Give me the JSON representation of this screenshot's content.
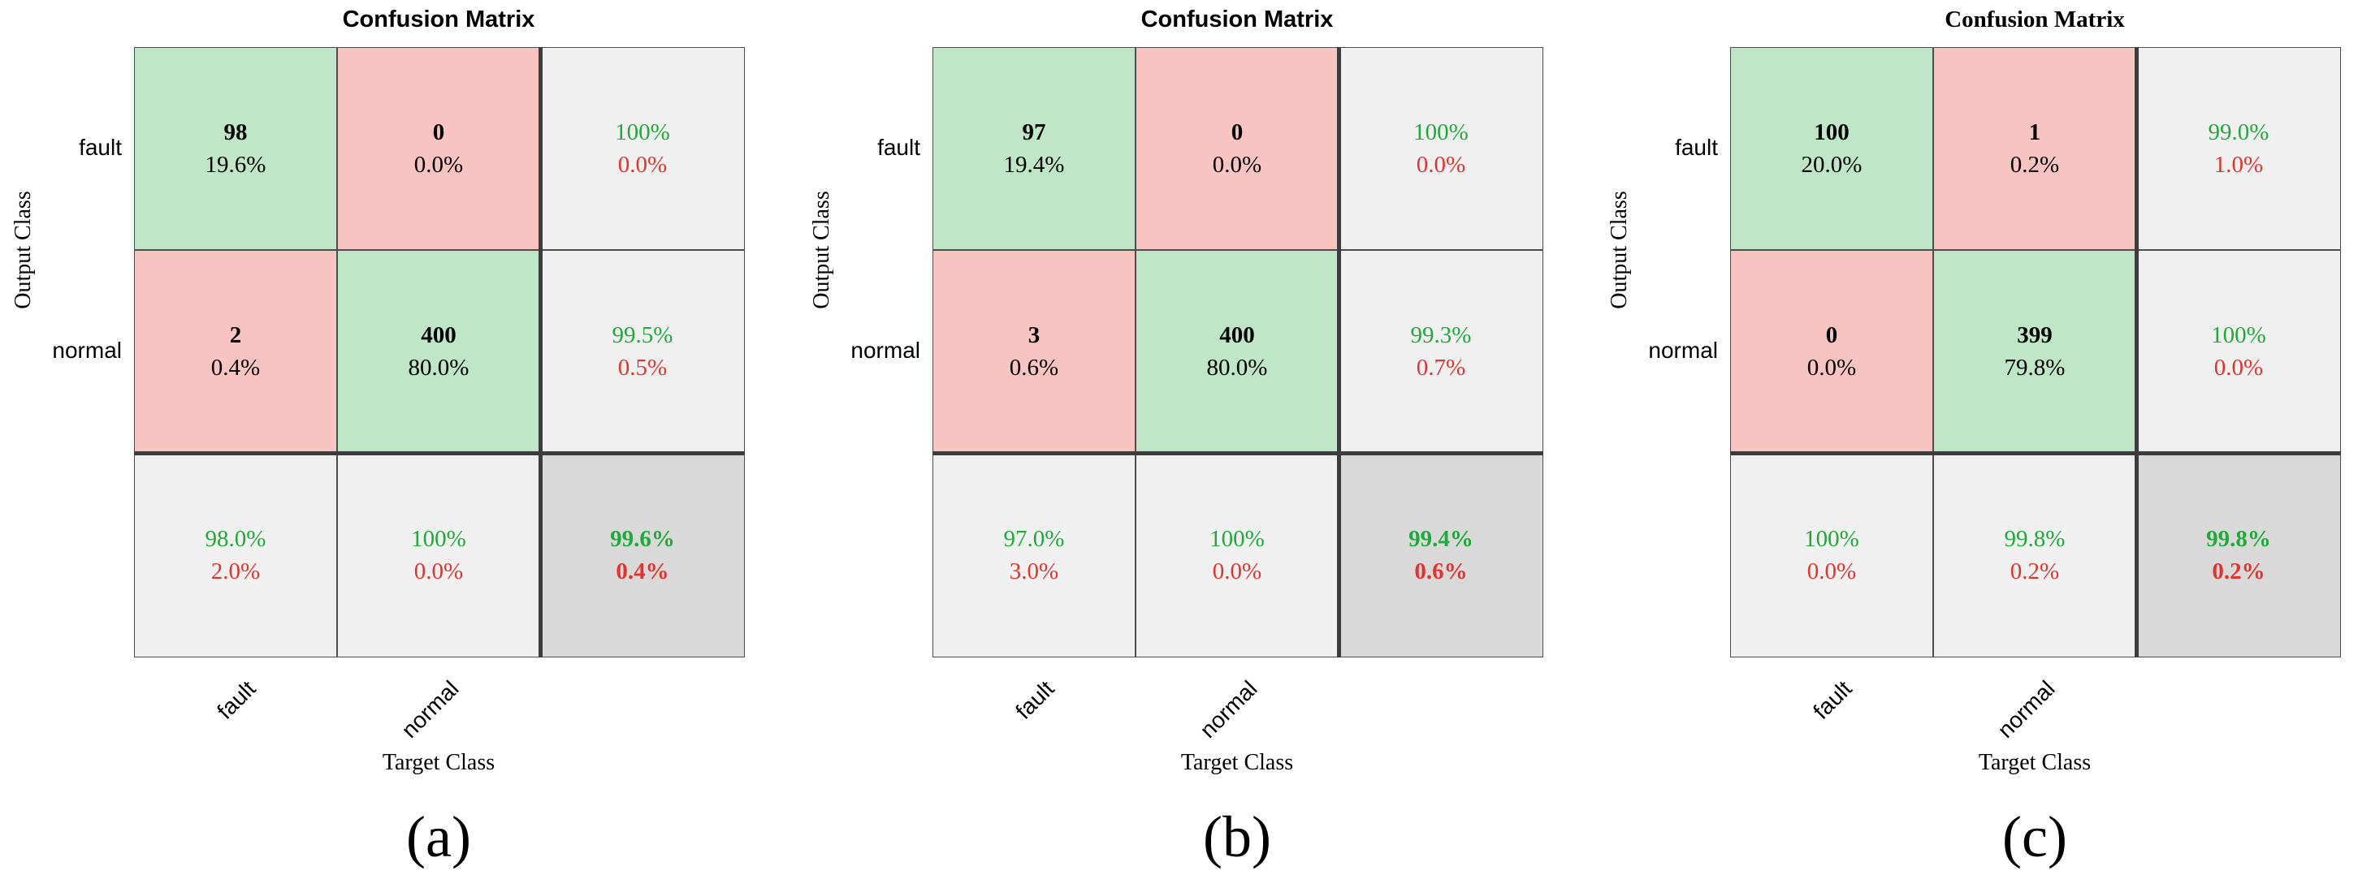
{
  "chart_data": [
    {
      "type": "heatmap",
      "title": "Confusion Matrix",
      "xlabel": "Target Class",
      "ylabel": "Output Class",
      "categories": [
        "fault",
        "normal"
      ],
      "cells": [
        [
          {
            "count": "98",
            "pct": "19.6%"
          },
          {
            "count": "0",
            "pct": "0.0%"
          }
        ],
        [
          {
            "count": "2",
            "pct": "0.4%"
          },
          {
            "count": "400",
            "pct": "80.0%"
          }
        ]
      ],
      "row_summary": [
        {
          "correct": "100%",
          "wrong": "0.0%"
        },
        {
          "correct": "99.5%",
          "wrong": "0.5%"
        }
      ],
      "col_summary": [
        {
          "correct": "98.0%",
          "wrong": "2.0%"
        },
        {
          "correct": "100%",
          "wrong": "0.0%"
        }
      ],
      "overall": {
        "correct": "99.6%",
        "wrong": "0.4%"
      },
      "panel_label": "(a)"
    },
    {
      "type": "heatmap",
      "title": "Confusion Matrix",
      "xlabel": "Target Class",
      "ylabel": "Output Class",
      "categories": [
        "fault",
        "normal"
      ],
      "cells": [
        [
          {
            "count": "97",
            "pct": "19.4%"
          },
          {
            "count": "0",
            "pct": "0.0%"
          }
        ],
        [
          {
            "count": "3",
            "pct": "0.6%"
          },
          {
            "count": "400",
            "pct": "80.0%"
          }
        ]
      ],
      "row_summary": [
        {
          "correct": "100%",
          "wrong": "0.0%"
        },
        {
          "correct": "99.3%",
          "wrong": "0.7%"
        }
      ],
      "col_summary": [
        {
          "correct": "97.0%",
          "wrong": "3.0%"
        },
        {
          "correct": "100%",
          "wrong": "0.0%"
        }
      ],
      "overall": {
        "correct": "99.4%",
        "wrong": "0.6%"
      },
      "panel_label": "(b)"
    },
    {
      "type": "heatmap",
      "title": "Confusion Matrix",
      "xlabel": "Target Class",
      "ylabel": "Output Class",
      "categories": [
        "fault",
        "normal"
      ],
      "cells": [
        [
          {
            "count": "100",
            "pct": "20.0%"
          },
          {
            "count": "1",
            "pct": "0.2%"
          }
        ],
        [
          {
            "count": "0",
            "pct": "0.0%"
          },
          {
            "count": "399",
            "pct": "79.8%"
          }
        ]
      ],
      "row_summary": [
        {
          "correct": "99.0%",
          "wrong": "1.0%"
        },
        {
          "correct": "100%",
          "wrong": "0.0%"
        }
      ],
      "col_summary": [
        {
          "correct": "100%",
          "wrong": "0.0%"
        },
        {
          "correct": "99.8%",
          "wrong": "0.2%"
        }
      ],
      "overall": {
        "correct": "99.8%",
        "wrong": "0.2%"
      },
      "panel_label": "(c)"
    }
  ],
  "colors": {
    "correct_cell": "#bfe6c6",
    "wrong_cell": "#f8c4c1",
    "summary_cell": "#f0f0f0",
    "overall_cell": "#d9d9d9",
    "correct_text": "#1faa3a",
    "wrong_text": "#e3332e"
  }
}
